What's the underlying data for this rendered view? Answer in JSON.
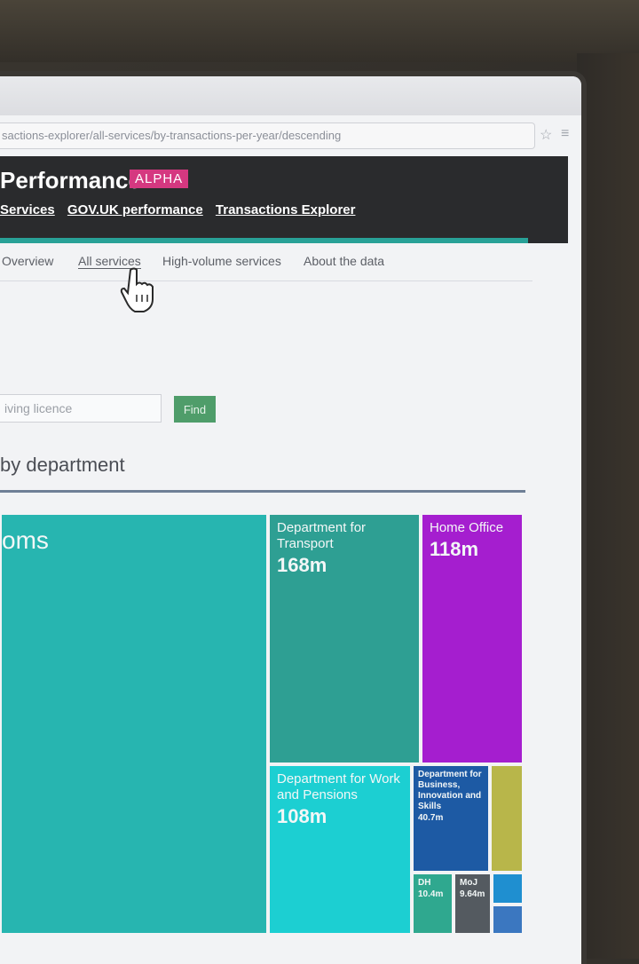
{
  "browser": {
    "url": "sactions-explorer/all-services/by-transactions-per-year/descending"
  },
  "header": {
    "title": "Performance",
    "badge": "ALPHA",
    "breadcrumbs": [
      "Services",
      "GOV.UK performance",
      "Transactions Explorer"
    ],
    "accent_color": "#28a197",
    "badge_color": "#d53880"
  },
  "tabs": [
    {
      "label": "Overview"
    },
    {
      "label": "All services"
    },
    {
      "label": "High-volume services"
    },
    {
      "label": "About the data"
    }
  ],
  "search": {
    "value": "iving licence",
    "button_label": "Find"
  },
  "section": {
    "title": "by department"
  },
  "treemap": {
    "cells": [
      {
        "name": "oms",
        "value": "",
        "color": "#27b5b0"
      },
      {
        "name": "Department for Transport",
        "value": "168m",
        "color": "#2e9f93"
      },
      {
        "name": "Home Office",
        "value": "118m",
        "color": "#a51ecf"
      },
      {
        "name": "Department for Work and Pensions",
        "value": "108m",
        "color": "#1ccfd2"
      },
      {
        "name": "Department for Business, Innovation and Skills",
        "value": "40.7m",
        "color": "#1d5aa4"
      },
      {
        "name": "",
        "value": "",
        "color": "#b8b64a"
      },
      {
        "name": "DH",
        "value": "10.4m",
        "color": "#2fa88f"
      },
      {
        "name": "MoJ",
        "value": "9.64m",
        "color": "#545a60"
      },
      {
        "name": "",
        "value": "",
        "color": "#1f8fd0"
      },
      {
        "name": "",
        "value": "",
        "color": "#3b77c0"
      }
    ]
  }
}
